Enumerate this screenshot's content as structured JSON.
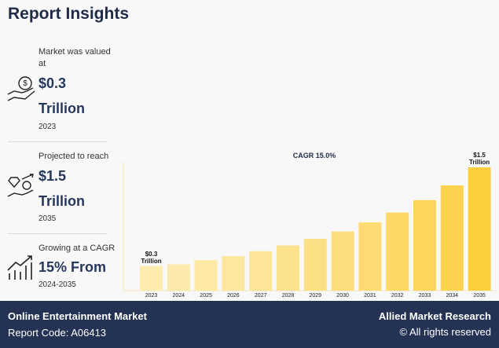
{
  "header": {
    "title": "Report Insights"
  },
  "left_panel": {
    "stats": [
      {
        "label": "Market was valued at",
        "value": "$0.3 Trillion",
        "period": "2023"
      },
      {
        "label": "Projected to reach",
        "value": "$1.5 Trillion",
        "period": "2035"
      },
      {
        "label": "Growing at a CAGR",
        "value": "15% From",
        "period": "2024-2035"
      }
    ]
  },
  "chart_data": {
    "type": "bar",
    "annotation": "CAGR 15.0%",
    "categories": [
      "2023",
      "2024",
      "2025",
      "2026",
      "2027",
      "2028",
      "2029",
      "2030",
      "2031",
      "2032",
      "2033",
      "2034",
      "2035"
    ],
    "values": [
      0.3,
      0.32,
      0.37,
      0.42,
      0.48,
      0.55,
      0.63,
      0.72,
      0.83,
      0.95,
      1.1,
      1.28,
      1.5
    ],
    "value_labels": [
      "$0.3 Trillion",
      null,
      null,
      null,
      null,
      null,
      null,
      null,
      null,
      null,
      null,
      null,
      "$1.5 Trillion"
    ],
    "colors": [
      "#fdebb0",
      "#fdeaab",
      "#fde8a4",
      "#fde69d",
      "#fde496",
      "#fde28e",
      "#fde086",
      "#fdde7d",
      "#fddb72",
      "#fdd867",
      "#fdd55b",
      "#fdd24e",
      "#fdce3c"
    ]
  },
  "footer": {
    "title": "Online Entertainment Market",
    "report_code": "Report Code: A06413",
    "brand": "Allied Market Research",
    "rights": "© All rights reserved"
  }
}
